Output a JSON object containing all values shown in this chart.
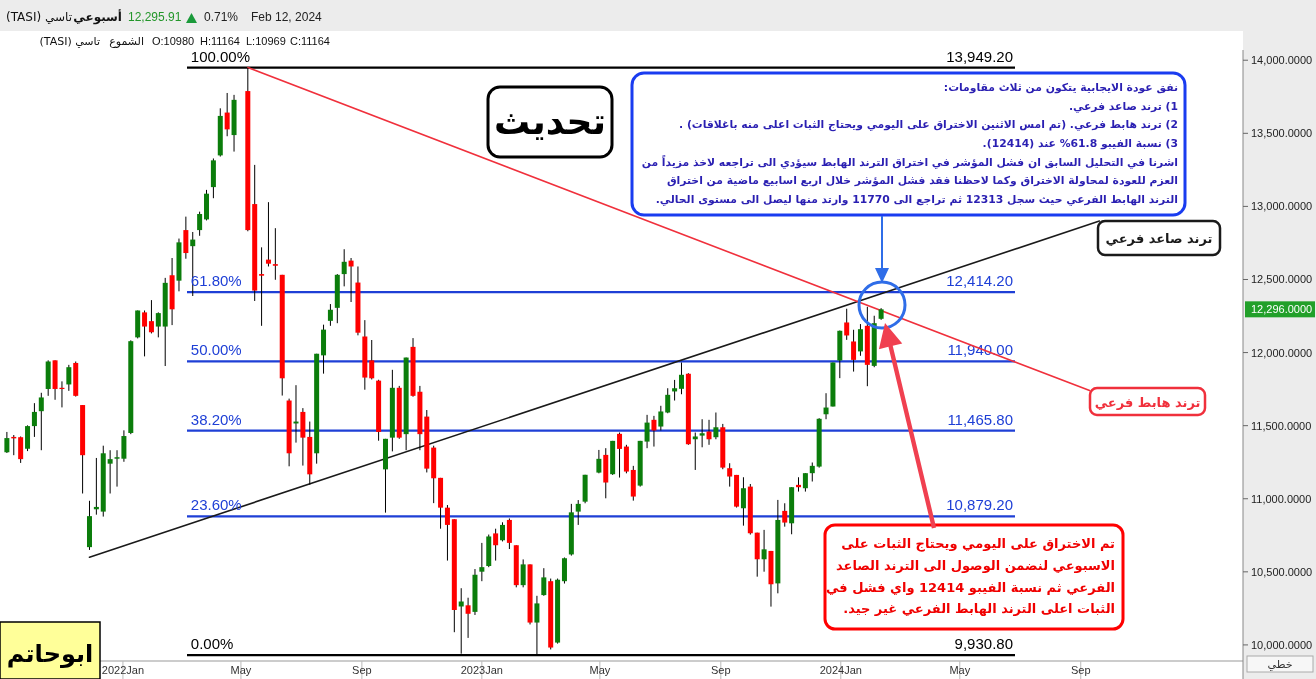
{
  "chart_data": {
    "type": "candlestick",
    "title": "تاسي (TASI)",
    "subtitle": "أسبوعي",
    "x": [
      "2021-09-05",
      "2021-09-12",
      "2021-09-19",
      "2021-09-26",
      "2021-10-03",
      "2021-10-10",
      "2021-10-17",
      "2021-10-24",
      "2021-10-31",
      "2021-11-07",
      "2021-11-14",
      "2021-11-21",
      "2021-11-28",
      "2021-12-05",
      "2021-12-12",
      "2021-12-19",
      "2021-12-26",
      "2022-01-02",
      "2022-01-09",
      "2022-01-16",
      "2022-01-23",
      "2022-01-30",
      "2022-02-06",
      "2022-02-13",
      "2022-02-20",
      "2022-02-27",
      "2022-03-06",
      "2022-03-13",
      "2022-03-20",
      "2022-03-27",
      "2022-04-03",
      "2022-04-10",
      "2022-04-17",
      "2022-04-24",
      "2022-05-08",
      "2022-05-15",
      "2022-05-22",
      "2022-05-29",
      "2022-06-05",
      "2022-06-12",
      "2022-06-19",
      "2022-06-26",
      "2022-07-03",
      "2022-07-10",
      "2022-07-17",
      "2022-07-24",
      "2022-07-31",
      "2022-08-07",
      "2022-08-14",
      "2022-08-21",
      "2022-08-28",
      "2022-09-04",
      "2022-09-11",
      "2022-09-18",
      "2022-09-25",
      "2022-10-02",
      "2022-10-09",
      "2022-10-16",
      "2022-10-23",
      "2022-10-30",
      "2022-11-06",
      "2022-11-13",
      "2022-11-20",
      "2022-11-27",
      "2022-12-04",
      "2022-12-11",
      "2022-12-18",
      "2022-12-25",
      "2023-01-01",
      "2023-01-08",
      "2023-01-15",
      "2023-01-22",
      "2023-01-29",
      "2023-02-05",
      "2023-02-12",
      "2023-02-19",
      "2023-02-26",
      "2023-03-05",
      "2023-03-12",
      "2023-03-19",
      "2023-03-26",
      "2023-04-02",
      "2023-04-09",
      "2023-04-16",
      "2023-04-30",
      "2023-05-07",
      "2023-05-14",
      "2023-05-21",
      "2023-05-28",
      "2023-06-04",
      "2023-06-11",
      "2023-06-18",
      "2023-06-25",
      "2023-07-02",
      "2023-07-09",
      "2023-07-16",
      "2023-07-23",
      "2023-07-30",
      "2023-08-06",
      "2023-08-13",
      "2023-08-20",
      "2023-08-27",
      "2023-09-03",
      "2023-09-10",
      "2023-09-17",
      "2023-09-24",
      "2023-10-01",
      "2023-10-08",
      "2023-10-15",
      "2023-10-22",
      "2023-10-29",
      "2023-11-05",
      "2023-11-12",
      "2023-11-19",
      "2023-11-26",
      "2023-12-03",
      "2023-12-10",
      "2023-12-17",
      "2023-12-24",
      "2023-12-31",
      "2024-01-07",
      "2024-01-14",
      "2024-01-21",
      "2024-01-28",
      "2024-02-04",
      "2024-02-11"
    ],
    "ohlc": [
      [
        11318,
        11457,
        11313,
        11415
      ],
      [
        11423,
        11436,
        11298,
        11413
      ],
      [
        11421,
        11426,
        11245,
        11271
      ],
      [
        11342,
        11502,
        11326,
        11497
      ],
      [
        11497,
        11654,
        11423,
        11594
      ],
      [
        11599,
        11725,
        11332,
        11693
      ],
      [
        11751,
        11947,
        11704,
        11939
      ],
      [
        11947,
        11947,
        11677,
        11751
      ],
      [
        11759,
        11803,
        11625,
        11751
      ],
      [
        11782,
        11916,
        11738,
        11900
      ],
      [
        11929,
        11939,
        11699,
        11704
      ],
      [
        11641,
        11641,
        11036,
        11298
      ],
      [
        10669,
        10986,
        10650,
        10881
      ],
      [
        10928,
        11279,
        10891,
        10944
      ],
      [
        10912,
        11363,
        10878,
        11311
      ],
      [
        11240,
        11332,
        11036,
        11271
      ],
      [
        11274,
        11332,
        11083,
        11284
      ],
      [
        11274,
        11468,
        11253,
        11429
      ],
      [
        11450,
        12084,
        11442,
        12078
      ],
      [
        12104,
        12288,
        12097,
        12288
      ],
      [
        12275,
        12288,
        11974,
        12178
      ],
      [
        12215,
        12359,
        12131,
        12139
      ],
      [
        12178,
        12275,
        12104,
        12270
      ],
      [
        12178,
        12511,
        11908,
        12477
      ],
      [
        12529,
        12647,
        12188,
        12296
      ],
      [
        12492,
        12780,
        12419,
        12754
      ],
      [
        12838,
        12930,
        12642,
        12681
      ],
      [
        12728,
        12825,
        12387,
        12773
      ],
      [
        12838,
        12964,
        12799,
        12948
      ],
      [
        12911,
        13113,
        12904,
        13087
      ],
      [
        13132,
        13328,
        13056,
        13315
      ],
      [
        13349,
        13671,
        13341,
        13619
      ],
      [
        13642,
        13776,
        13480,
        13527
      ],
      [
        13488,
        13763,
        13375,
        13729
      ],
      [
        13789,
        13949.2,
        12830,
        12838
      ],
      [
        13016,
        13284,
        12353,
        12424
      ],
      [
        12537,
        12720,
        12183,
        12526
      ],
      [
        12636,
        13029,
        12589,
        12608
      ],
      [
        12605,
        12851,
        12498,
        12594
      ],
      [
        12532,
        12532,
        11706,
        11824
      ],
      [
        11672,
        11685,
        11222,
        11311
      ],
      [
        11515,
        11777,
        11384,
        11528
      ],
      [
        11594,
        11620,
        11227,
        11418
      ],
      [
        11423,
        11528,
        11096,
        11167
      ],
      [
        11311,
        11992,
        11240,
        11992
      ],
      [
        11981,
        12191,
        11856,
        12157
      ],
      [
        12217,
        12332,
        12183,
        12293
      ],
      [
        12306,
        12537,
        12201,
        12532
      ],
      [
        12537,
        12707,
        12453,
        12621
      ],
      [
        12629,
        12647,
        12346,
        12589
      ],
      [
        12479,
        12589,
        12118,
        12136
      ],
      [
        12110,
        12222,
        11746,
        11829
      ],
      [
        11947,
        12086,
        11816,
        11824
      ],
      [
        11808,
        11814,
        11397,
        11457
      ],
      [
        11201,
        11410,
        10905,
        11410
      ],
      [
        11418,
        11882,
        11324,
        11759
      ],
      [
        11759,
        11772,
        11410,
        11418
      ],
      [
        11442,
        11966,
        11332,
        11966
      ],
      [
        12039,
        12099,
        11698,
        11704
      ],
      [
        11732,
        11772,
        11332,
        11442
      ],
      [
        11562,
        11607,
        11180,
        11206
      ],
      [
        11350,
        11363,
        10970,
        11140
      ],
      [
        11143,
        11143,
        10795,
        10939
      ],
      [
        10939,
        10957,
        10577,
        10821
      ],
      [
        10860,
        10860,
        10087,
        10239
      ],
      [
        10263,
        10388,
        9940,
        10297
      ],
      [
        10271,
        10323,
        10048,
        10213
      ],
      [
        10226,
        10519,
        10205,
        10480
      ],
      [
        10501,
        10698,
        10436,
        10532
      ],
      [
        10540,
        10755,
        10532,
        10742
      ],
      [
        10763,
        10795,
        10577,
        10682
      ],
      [
        10716,
        10839,
        10708,
        10821
      ],
      [
        10855,
        10865,
        10656,
        10698
      ],
      [
        10682,
        10682,
        10394,
        10409
      ],
      [
        10409,
        10585,
        10394,
        10551
      ],
      [
        10551,
        10551,
        10140,
        10153
      ],
      [
        10153,
        10336,
        9930.8,
        10284
      ],
      [
        10341,
        10525,
        10336,
        10462
      ],
      [
        10436,
        10454,
        9969,
        9982
      ],
      [
        10016,
        10454,
        10009,
        10446
      ],
      [
        10436,
        10598,
        10420,
        10593
      ],
      [
        10619,
        10965,
        10611,
        10907
      ],
      [
        10912,
        10991,
        10821,
        10965
      ],
      [
        10980,
        11164,
        10969,
        11164
      ],
      [
        11179,
        11334,
        11174,
        11273
      ],
      [
        11300,
        11346,
        11003,
        11111
      ],
      [
        11168,
        11396,
        11163,
        11396
      ],
      [
        11444,
        11453,
        11145,
        11341
      ],
      [
        11357,
        11369,
        11174,
        11186
      ],
      [
        11197,
        11225,
        10987,
        11015
      ],
      [
        11090,
        11396,
        11083,
        11396
      ],
      [
        11391,
        11574,
        11346,
        11521
      ],
      [
        11540,
        11567,
        11357,
        11467
      ],
      [
        11494,
        11636,
        11467,
        11597
      ],
      [
        11590,
        11756,
        11585,
        11711
      ],
      [
        11734,
        11813,
        11672,
        11756
      ],
      [
        11752,
        11932,
        11715,
        11848
      ],
      [
        11855,
        11859,
        11369,
        11373
      ],
      [
        11407,
        11453,
        11197,
        11426
      ],
      [
        11432,
        11544,
        11352,
        11448
      ],
      [
        11460,
        11540,
        11369,
        11407
      ],
      [
        11421,
        11590,
        11407,
        11489
      ],
      [
        11489,
        11512,
        11202,
        11213
      ],
      [
        11209,
        11243,
        11083,
        11152
      ],
      [
        11163,
        11163,
        10940,
        10946
      ],
      [
        10935,
        11147,
        10816,
        11072
      ],
      [
        11083,
        11101,
        10755,
        10764
      ],
      [
        10768,
        10768,
        10467,
        10586
      ],
      [
        10586,
        10787,
        10501,
        10654
      ],
      [
        10643,
        10643,
        10262,
        10415
      ],
      [
        10421,
        10992,
        10353,
        10855
      ],
      [
        10917,
        10969,
        10809,
        10837
      ],
      [
        10832,
        11079,
        10757,
        11079
      ],
      [
        11095,
        11147,
        11049,
        11079
      ],
      [
        11072,
        11175,
        11049,
        11175
      ],
      [
        11175,
        11248,
        11118,
        11225
      ],
      [
        11220,
        11551,
        11213,
        11547
      ],
      [
        11578,
        11722,
        11544,
        11624
      ],
      [
        11631,
        11932,
        11631,
        11932
      ],
      [
        11946,
        12151,
        11825,
        12149
      ],
      [
        12206,
        12300,
        12087,
        12117
      ],
      [
        12076,
        12156,
        11870,
        11950
      ],
      [
        12008,
        12195,
        11978,
        12160
      ],
      [
        12183,
        12313,
        11770,
        11916
      ],
      [
        11909,
        12252,
        11900,
        12201
      ],
      [
        12231,
        12304,
        12224,
        12295.91
      ]
    ],
    "colors": [
      "#0b7d0b",
      "#ff0000",
      "#ff0000",
      "#0b7d0b",
      "#0b7d0b",
      "#0b7d0b",
      "#0b7d0b",
      "#ff0000",
      "#ff0000",
      "#0b7d0b",
      "#ff0000",
      "#ff0000",
      "#0b7d0b",
      "#0b7d0b",
      "#0b7d0b",
      "#0b7d0b",
      "#0b7d0b",
      "#0b7d0b",
      "#0b7d0b",
      "#0b7d0b",
      "#ff0000",
      "#ff0000",
      "#0b7d0b",
      "#0b7d0b",
      "#ff0000",
      "#0b7d0b",
      "#ff0000",
      "#0b7d0b",
      "#0b7d0b",
      "#0b7d0b",
      "#0b7d0b",
      "#0b7d0b",
      "#ff0000",
      "#0b7d0b",
      "#ff0000",
      "#ff0000",
      "#ff0000",
      "#ff0000",
      "#ff0000",
      "#ff0000",
      "#ff0000",
      "#0b7d0b",
      "#ff0000",
      "#ff0000",
      "#0b7d0b",
      "#0b7d0b",
      "#0b7d0b",
      "#0b7d0b",
      "#0b7d0b",
      "#ff0000",
      "#ff0000",
      "#ff0000",
      "#ff0000",
      "#ff0000",
      "#0b7d0b",
      "#0b7d0b",
      "#ff0000",
      "#0b7d0b",
      "#ff0000",
      "#ff0000",
      "#ff0000",
      "#ff0000",
      "#ff0000",
      "#ff0000",
      "#ff0000",
      "#0b7d0b",
      "#ff0000",
      "#0b7d0b",
      "#0b7d0b",
      "#0b7d0b",
      "#ff0000",
      "#0b7d0b",
      "#ff0000",
      "#ff0000",
      "#0b7d0b",
      "#ff0000",
      "#0b7d0b",
      "#0b7d0b",
      "#ff0000",
      "#0b7d0b",
      "#0b7d0b",
      "#0b7d0b",
      "#0b7d0b",
      "#0b7d0b",
      "#0b7d0b",
      "#ff0000",
      "#0b7d0b",
      "#ff0000",
      "#ff0000",
      "#ff0000",
      "#0b7d0b",
      "#0b7d0b",
      "#ff0000",
      "#0b7d0b",
      "#0b7d0b",
      "#0b7d0b",
      "#0b7d0b",
      "#ff0000",
      "#0b7d0b",
      "#0b7d0b",
      "#ff0000",
      "#0b7d0b",
      "#ff0000",
      "#ff0000",
      "#ff0000",
      "#0b7d0b",
      "#ff0000",
      "#ff0000",
      "#0b7d0b",
      "#ff0000",
      "#0b7d0b",
      "#ff0000",
      "#0b7d0b",
      "#ff0000",
      "#0b7d0b",
      "#0b7d0b",
      "#0b7d0b",
      "#0b7d0b",
      "#0b7d0b",
      "#0b7d0b",
      "#ff0000",
      "#ff0000",
      "#0b7d0b",
      "#ff0000",
      "#0b7d0b",
      "#0b7d0b"
    ],
    "series": [
      {
        "type": "line",
        "name": "ترند صاعد فرعي",
        "color": "#1a1a1a",
        "x": [
          "2021-11-28",
          "2024-09-20"
        ],
        "values": [
          10600,
          12900
        ]
      },
      {
        "type": "line",
        "name": "ترند هابط فرعي",
        "color": "#f0303c",
        "x": [
          "2022-05-08",
          "2024-09-10"
        ],
        "values": [
          13950,
          11740
        ]
      }
    ],
    "xlim": [
      "2021-08-29",
      "2025-02-13"
    ],
    "xticks": [
      {
        "value": "2022-01",
        "label": "2022Jan"
      },
      {
        "value": "2022-05",
        "label": "May"
      },
      {
        "value": "2022-09",
        "label": "Sep"
      },
      {
        "value": "2023-01",
        "label": "2023Jan"
      },
      {
        "value": "2023-05",
        "label": "May"
      },
      {
        "value": "2023-09",
        "label": "Sep"
      },
      {
        "value": "2024-01",
        "label": "2024Jan"
      },
      {
        "value": "2024-05",
        "label": "May"
      },
      {
        "value": "2024-09",
        "label": "Sep"
      }
    ],
    "ylim": [
      9890,
      14070
    ],
    "yticks": [
      {
        "value": 10000,
        "label": "10,000.0000"
      },
      {
        "value": 10500,
        "label": "10,500.0000"
      },
      {
        "value": 11000,
        "label": "11,000.0000"
      },
      {
        "value": 11500,
        "label": "11,500.0000"
      },
      {
        "value": 12000,
        "label": "12,000.0000"
      },
      {
        "value": 12500,
        "label": "12,500.0000"
      },
      {
        "value": 13000,
        "label": "13,000.0000"
      },
      {
        "value": 13500,
        "label": "13,500.0000"
      },
      {
        "value": 14000,
        "label": "14,000.0000"
      }
    ],
    "ref_lines": [
      {
        "axis": "y",
        "value": 13949.2,
        "label": "13,949.20",
        "color": "#000000"
      },
      {
        "axis": "y",
        "value": 12414.2,
        "label": "12,414.20",
        "color": "#1e3fd6"
      },
      {
        "axis": "y",
        "value": 11940,
        "label": "11,940.00",
        "color": "#1e3fd6"
      },
      {
        "axis": "y",
        "value": 11465.8,
        "label": "11,465.80",
        "color": "#1e3fd6"
      },
      {
        "axis": "y",
        "value": 10879.2,
        "label": "10,879.20",
        "color": "#1e3fd6"
      },
      {
        "axis": "y",
        "value": 9930.8,
        "label": "9,930.80",
        "color": "#000000"
      }
    ],
    "annotations": [
      "12,295.91",
      "0.71%",
      "Feb 12, 2024",
      "تاسي (TASI)",
      "الشموع",
      "O:10980",
      "H:11164",
      "L:10969",
      "C:11164",
      "تحديث",
      "نفق عودة الايجابية يتكون من ثلاث مقاومات:",
      "1) ترند صاعد فرعي.",
      "2) ترند هابط فرعي. (تم امس الاثنين الاختراق على اليومي ويحتاج الثبات اعلى منه باغلاقات) .",
      "3) نسبة الفيبو 61.8% عند (12414).",
      "اشرنا في التحليل السابق ان فشل المؤشر في اختراق الترند الهابط سيؤدي الى تراجعه لاخذ مزيداً من",
      "العزم للعودة لمحاولة الاختراق وكما لاحظنا فقد فشل المؤشر خلال اربع اسابيع ماضية من اختراق",
      "الترند الهابط الفرعي حيث سجل 12313 ثم تراجع الى 11770 وارتد منها ليصل الى مستوى الحالي.",
      "تم الاختراق على اليومي ويحتاج الثبات على",
      "الاسبوعي لنضمن الوصول الى الترند الصاعد",
      "الفرعي ثم نسبة الفيبو 12414 واي فشل في",
      "الثبات اعلى الترند الهابط الفرعي غير جيد.",
      "ابوحاتم",
      "خطي",
      "12,296.0000",
      {
        "text": "100.00%",
        "x": "2022-03-09",
        "y": 13949.2
      },
      {
        "text": "61.80%",
        "x": "2022-03-09",
        "y": 12414.2
      },
      {
        "text": "50.00%",
        "x": "2022-03-09",
        "y": 11940
      },
      {
        "text": "38.20%",
        "x": "2022-03-09",
        "y": 11465.8
      },
      {
        "text": "23.60%",
        "x": "2022-03-09",
        "y": 10879.2
      },
      {
        "text": "0.00%",
        "x": "2022-03-09",
        "y": 9930.8
      }
    ]
  }
}
